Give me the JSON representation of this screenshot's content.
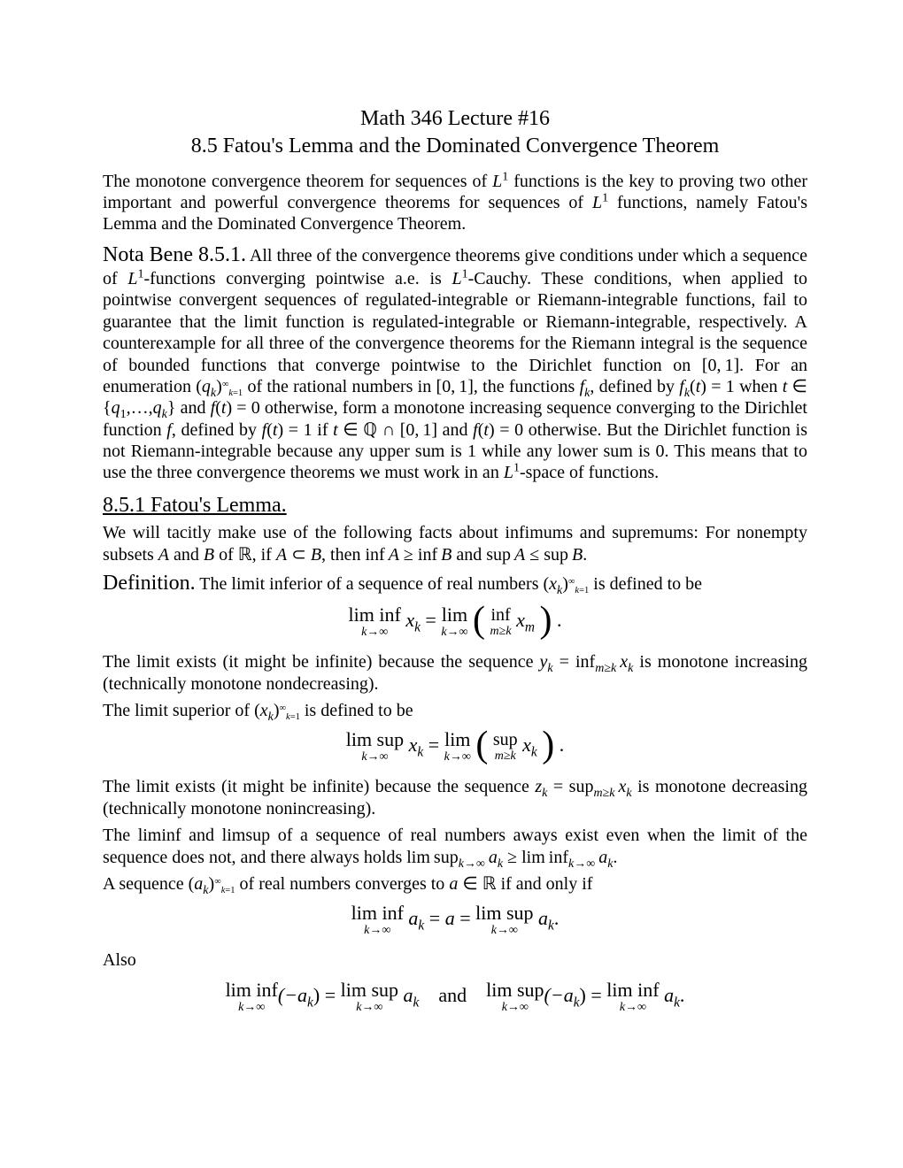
{
  "title": "Math 346 Lecture #16",
  "subtitle": "8.5 Fatou's Lemma and the Dominated Convergence Theorem",
  "intro_html": "The monotone convergence theorem for sequences of <i>L</i><sup>1</sup> functions is the key to proving two other important and powerful convergence theorems for sequences of <i>L</i><sup>1</sup> functions, namely Fatou's Lemma and the Dominated Convergence Theorem.",
  "nota_label": "Nota Bene 8.5.1.",
  "nota_html": "All three of the convergence theorems give conditions under which a sequence of <i>L</i><sup>1</sup>-functions converging pointwise a.e. is <i>L</i><sup>1</sup>-Cauchy. These conditions, when applied to pointwise convergent sequences of regulated-integrable or Riemann-integrable functions, fail to guarantee that the limit function is regulated-integrable or Riemann-integrable, respectively. A counterexample for all three of the convergence theorems for the Riemann integral is the sequence of bounded functions that converge pointwise to the Dirichlet function on [0,&thinsp;1]. For an enumeration (<i>q</i><sub><i>k</i></sub>)<span style='font-size:0.75em'><sup>&infin;</sup><sub><i>k</i>=1</sub></span> of the rational numbers in [0,&thinsp;1], the functions <i>f</i><sub><i>k</i></sub>, defined by <i>f</i><sub><i>k</i></sub>(<i>t</i>) = 1 when <i>t</i> &isin; {<i>q</i><sub>1</sub>,&hellip;,<i>q</i><sub><i>k</i></sub>} and <i>f</i>(<i>t</i>) = 0 otherwise, form a monotone increasing sequence converging to the Dirichlet function <i>f</i>, defined by <i>f</i>(<i>t</i>) = 1 if <i>t</i> &isin; &#8474; &cap; [0,&thinsp;1] and <i>f</i>(<i>t</i>) = 0 otherwise. But the Dirichlet function is not Riemann-integrable because any upper sum is 1 while any lower sum is 0. This means that to use the three convergence theorems we must work in an <i>L</i><sup>1</sup>-space of functions.",
  "section1": "8.5.1 Fatou's Lemma.",
  "facts_html": "We will tacitly make use of the following facts about infimums and supremums: For nonempty subsets <i>A</i> and <i>B</i> of &#8477;, if <i>A</i> &sub; <i>B</i>, then inf&thinsp;<i>A</i> &ge; inf&thinsp;<i>B</i> and sup&thinsp;<i>A</i> &le; sup&thinsp;<i>B</i>.",
  "defn_label": "Definition.",
  "defn_html": "The limit inferior of a sequence of real numbers (<i>x</i><sub><i>k</i></sub>)<span style='font-size:0.75em'><sup>&infin;</sup><sub><i>k</i>=1</sub></span> is defined to be",
  "eq1_liminf": "lim inf",
  "eq1_sub1": "k→∞",
  "eq1_xk": "x",
  "eq1_ksub": "k",
  "eq1_eq": " = ",
  "eq1_lim": "lim",
  "eq1_sub2": "k→∞",
  "eq1_inf": "inf",
  "eq1_sub3": "m≥k",
  "eq1_xm": "x",
  "eq1_msub": "m",
  "aftereq1_html": "The limit exists (it might be infinite) because the sequence <i>y</i><sub><i>k</i></sub> = inf<sub><i>m</i>&ge;<i>k</i></sub>&thinsp;<i>x</i><sub><i>k</i></sub> is monotone increasing (technically monotone nondecreasing).",
  "limsup_intro_html": "The limit superior of (<i>x</i><sub><i>k</i></sub>)<span style='font-size:0.75em'><sup>&infin;</sup><sub><i>k</i>=1</sub></span> is defined to be",
  "eq2_limsup": "lim sup",
  "eq2_sub1": "k→∞",
  "eq2_sup": "sup",
  "eq2_sub3": "m≥k",
  "aftereq2_html": "The limit exists (it might be infinite) because the sequence <i>z</i><sub><i>k</i></sub> = sup<sub><i>m</i>&ge;<i>k</i></sub>&thinsp;<i>x</i><sub><i>k</i></sub> is monotone decreasing (technically monotone nonincreasing).",
  "liminfsup_exist_html": "The liminf and limsup of a sequence of real numbers aways exist even when the limit of the sequence does not, and there always holds lim&thinsp;sup<sub><i>k</i>&rarr;&infin;</sub>&thinsp;<i>a</i><sub><i>k</i></sub> &ge; lim&thinsp;inf<sub><i>k</i>&rarr;&infin;</sub>&thinsp;<i>a</i><sub><i>k</i></sub>.",
  "conv_html": "A sequence (<i>a</i><sub><i>k</i></sub>)<span style='font-size:0.75em'><sup>&infin;</sup><sub><i>k</i>=1</sub></span> of real numbers converges to <i>a</i> &isin; &#8477; if and only if",
  "eq3_center_a": "a",
  "eq3_ak": "a",
  "also": "Also",
  "eq4_and": " and ",
  "eq4_neg": "(−a",
  "eq4_close": ")",
  "period": "."
}
